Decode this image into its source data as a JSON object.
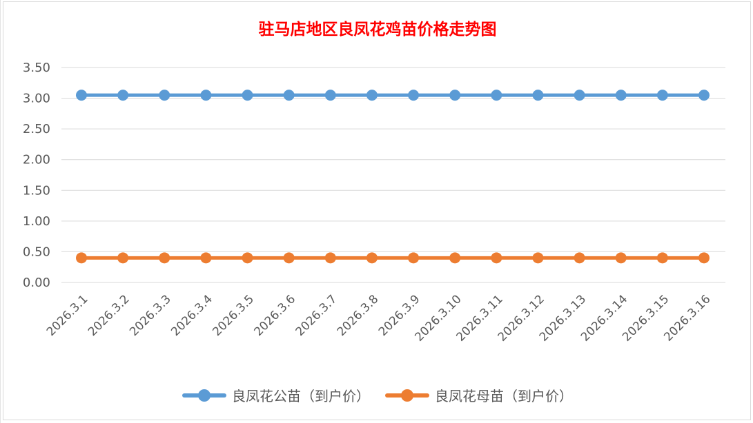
{
  "chart_data": {
    "type": "line",
    "title": "驻马店地区良凤花鸡苗价格走势图",
    "xlabel": "",
    "ylabel": "",
    "categories": [
      "2026.3.1",
      "2026.3.2",
      "2026.3.3",
      "2026.3.4",
      "2026.3.5",
      "2026.3.6",
      "2026.3.7",
      "2026.3.8",
      "2026.3.9",
      "2026.3.10",
      "2026.3.11",
      "2026.3.12",
      "2026.3.13",
      "2026.3.14",
      "2026.3.15",
      "2026.3.16"
    ],
    "series": [
      {
        "name": "良凤花公苗（到户价）",
        "color": "#5b9bd5",
        "values": [
          3.05,
          3.05,
          3.05,
          3.05,
          3.05,
          3.05,
          3.05,
          3.05,
          3.05,
          3.05,
          3.05,
          3.05,
          3.05,
          3.05,
          3.05,
          3.05
        ]
      },
      {
        "name": "良凤花母苗（到户价）",
        "color": "#ed7d31",
        "values": [
          0.4,
          0.4,
          0.4,
          0.4,
          0.4,
          0.4,
          0.4,
          0.4,
          0.4,
          0.4,
          0.4,
          0.4,
          0.4,
          0.4,
          0.4,
          0.4
        ]
      }
    ],
    "ylim": [
      0,
      3.5
    ],
    "yticks": [
      "0.00",
      "0.50",
      "1.00",
      "1.50",
      "2.00",
      "2.50",
      "3.00",
      "3.50"
    ],
    "grid": true,
    "legend": "bottom"
  }
}
